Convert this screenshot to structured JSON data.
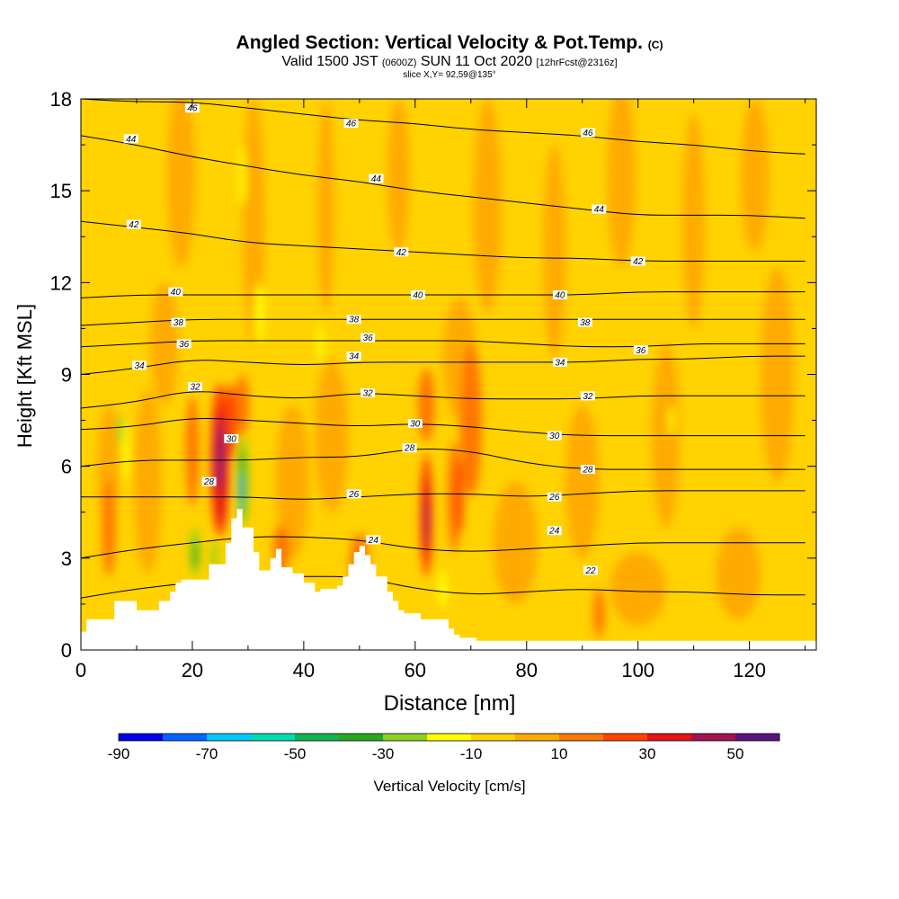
{
  "title": {
    "main": "Angled Section: Vertical Velocity & Pot.Temp.",
    "main_unit": "(C)",
    "valid_prefix": "Valid 1500 JST",
    "valid_utc": "(0600Z)",
    "valid_date": "SUN 11 Oct 2020",
    "valid_fcst": "[12hrFcst@2316z]",
    "slice": "slice X,Y= 92,59@135°"
  },
  "chart_data": {
    "type": "heatmap",
    "title": "Angled Section: Vertical Velocity & Pot.Temp. (C)",
    "xlabel": "Distance [nm]",
    "ylabel": "Height [Kft MSL]",
    "xlim": [
      0,
      132
    ],
    "ylim": [
      0,
      18
    ],
    "x_ticks": [
      "0",
      "20",
      "40",
      "60",
      "80",
      "100",
      "120"
    ],
    "y_ticks": [
      "0",
      "3",
      "6",
      "9",
      "12",
      "15",
      "18"
    ],
    "colorbar": {
      "label": "Vertical Velocity [cm/s]",
      "tick_labels": [
        "-90",
        "-70",
        "-50",
        "-30",
        "-10",
        "10",
        "30",
        "50"
      ],
      "colors": [
        "#0000e8",
        "#0064ff",
        "#00c8ff",
        "#00dcb4",
        "#10b450",
        "#28a81e",
        "#8cd21e",
        "#ffff00",
        "#ffd200",
        "#ffaa00",
        "#ff7800",
        "#ff4600",
        "#e61414",
        "#a01450",
        "#5a147d"
      ]
    },
    "theta_contours": [
      {
        "label": "22",
        "x": [
          0,
          10,
          20,
          30,
          40,
          50,
          60,
          70,
          80,
          90,
          100,
          110,
          120,
          130
        ],
        "y": [
          1.7,
          2.0,
          2.2,
          2.4,
          2.4,
          2.4,
          2.0,
          1.8,
          1.9,
          2.0,
          1.9,
          1.9,
          1.8,
          1.8
        ]
      },
      {
        "label": "24",
        "x": [
          0,
          10,
          20,
          30,
          40,
          50,
          60,
          70,
          80,
          90,
          100,
          110,
          120,
          130
        ],
        "y": [
          3.0,
          3.3,
          3.5,
          3.7,
          3.7,
          3.6,
          3.3,
          3.2,
          3.3,
          3.4,
          3.5,
          3.5,
          3.5,
          3.5
        ]
      },
      {
        "label": "26",
        "x": [
          0,
          10,
          20,
          30,
          40,
          50,
          60,
          70,
          80,
          90,
          100,
          110,
          120,
          130
        ],
        "y": [
          5.0,
          5.0,
          5.0,
          5.0,
          4.9,
          5.0,
          5.1,
          5.1,
          5.0,
          5.1,
          5.2,
          5.2,
          5.2,
          5.2
        ]
      },
      {
        "label": "28",
        "x": [
          0,
          10,
          20,
          30,
          40,
          50,
          60,
          70,
          80,
          90,
          100,
          110,
          120,
          130
        ],
        "y": [
          6.0,
          6.2,
          6.2,
          6.2,
          6.3,
          6.3,
          6.6,
          6.5,
          6.1,
          5.9,
          5.9,
          5.9,
          5.9,
          5.9
        ]
      },
      {
        "label": "30",
        "x": [
          0,
          10,
          20,
          30,
          40,
          50,
          60,
          70,
          80,
          90,
          100,
          110,
          120,
          130
        ],
        "y": [
          7.2,
          7.3,
          7.6,
          7.5,
          7.4,
          7.3,
          7.4,
          7.3,
          7.1,
          7.0,
          7.0,
          7.0,
          7.0,
          7.0
        ]
      },
      {
        "label": "32",
        "x": [
          0,
          10,
          20,
          30,
          40,
          50,
          60,
          70,
          80,
          90,
          100,
          110,
          120,
          130
        ],
        "y": [
          7.9,
          8.1,
          8.5,
          8.3,
          8.2,
          8.4,
          8.3,
          8.2,
          8.2,
          8.2,
          8.3,
          8.3,
          8.3,
          8.3
        ]
      },
      {
        "label": "34",
        "x": [
          0,
          10,
          20,
          30,
          40,
          50,
          60,
          70,
          80,
          90,
          100,
          110,
          120,
          130
        ],
        "y": [
          9.0,
          9.2,
          9.5,
          9.4,
          9.3,
          9.4,
          9.4,
          9.4,
          9.4,
          9.4,
          9.5,
          9.5,
          9.6,
          9.6
        ]
      },
      {
        "label": "36",
        "x": [
          0,
          10,
          20,
          30,
          40,
          50,
          60,
          70,
          80,
          90,
          100,
          110,
          120,
          130
        ],
        "y": [
          9.9,
          10.0,
          10.1,
          10.1,
          10.1,
          10.1,
          10.1,
          10.1,
          10.0,
          9.9,
          9.9,
          10.0,
          10.0,
          10.0
        ]
      },
      {
        "label": "38",
        "x": [
          0,
          10,
          20,
          30,
          40,
          50,
          60,
          70,
          80,
          90,
          100,
          110,
          120,
          130
        ],
        "y": [
          10.6,
          10.7,
          10.8,
          10.8,
          10.8,
          10.8,
          10.8,
          10.8,
          10.8,
          10.8,
          10.8,
          10.8,
          10.8,
          10.8
        ]
      },
      {
        "label": "40",
        "x": [
          0,
          10,
          20,
          30,
          40,
          50,
          60,
          70,
          80,
          90,
          100,
          110,
          120,
          130
        ],
        "y": [
          11.5,
          11.6,
          11.6,
          11.6,
          11.6,
          11.6,
          11.6,
          11.6,
          11.6,
          11.6,
          11.7,
          11.7,
          11.7,
          11.7
        ]
      },
      {
        "label": "42",
        "x": [
          0,
          10,
          20,
          30,
          40,
          50,
          60,
          70,
          80,
          90,
          100,
          110,
          120,
          130
        ],
        "y": [
          14.0,
          13.8,
          13.6,
          13.3,
          13.2,
          13.1,
          13.0,
          12.9,
          12.8,
          12.8,
          12.7,
          12.7,
          12.7,
          12.7
        ]
      },
      {
        "label": "44",
        "x": [
          0,
          10,
          20,
          30,
          40,
          50,
          60,
          70,
          80,
          90,
          100,
          110,
          120,
          130
        ],
        "y": [
          16.8,
          16.5,
          16.1,
          15.8,
          15.5,
          15.3,
          15.0,
          14.8,
          14.6,
          14.4,
          14.2,
          14.2,
          14.2,
          14.1
        ]
      },
      {
        "label": "46",
        "x": [
          0,
          10,
          20,
          30,
          40,
          50,
          60,
          70,
          80,
          90,
          100,
          110,
          120,
          130
        ],
        "y": [
          18.0,
          17.9,
          17.9,
          17.7,
          17.5,
          17.3,
          17.2,
          17.0,
          16.9,
          16.8,
          16.6,
          16.5,
          16.3,
          16.2
        ]
      }
    ],
    "contour_labels": [
      {
        "text": "46",
        "x": 20,
        "y": 17.7
      },
      {
        "text": "46",
        "x": 48.5,
        "y": 17.2
      },
      {
        "text": "46",
        "x": 91,
        "y": 16.9
      },
      {
        "text": "44",
        "x": 9,
        "y": 16.7
      },
      {
        "text": "44",
        "x": 53,
        "y": 15.4
      },
      {
        "text": "44",
        "x": 93,
        "y": 14.4
      },
      {
        "text": "42",
        "x": 9.5,
        "y": 13.9
      },
      {
        "text": "42",
        "x": 57.5,
        "y": 13.0
      },
      {
        "text": "42",
        "x": 100,
        "y": 12.7
      },
      {
        "text": "40",
        "x": 17,
        "y": 11.7
      },
      {
        "text": "40",
        "x": 60.5,
        "y": 11.6
      },
      {
        "text": "40",
        "x": 86,
        "y": 11.6
      },
      {
        "text": "38",
        "x": 17.5,
        "y": 10.7
      },
      {
        "text": "38",
        "x": 49,
        "y": 10.8
      },
      {
        "text": "38",
        "x": 90.5,
        "y": 10.7
      },
      {
        "text": "36",
        "x": 18.5,
        "y": 10.0
      },
      {
        "text": "36",
        "x": 51.5,
        "y": 10.2
      },
      {
        "text": "36",
        "x": 100.5,
        "y": 9.8
      },
      {
        "text": "34",
        "x": 10.5,
        "y": 9.3
      },
      {
        "text": "34",
        "x": 49,
        "y": 9.6
      },
      {
        "text": "34",
        "x": 86,
        "y": 9.4
      },
      {
        "text": "32",
        "x": 20.5,
        "y": 8.6
      },
      {
        "text": "32",
        "x": 51.5,
        "y": 8.4
      },
      {
        "text": "32",
        "x": 91,
        "y": 8.3
      },
      {
        "text": "30",
        "x": 27,
        "y": 6.9
      },
      {
        "text": "30",
        "x": 60,
        "y": 7.4
      },
      {
        "text": "30",
        "x": 85,
        "y": 7.0
      },
      {
        "text": "28",
        "x": 23,
        "y": 5.5
      },
      {
        "text": "28",
        "x": 59,
        "y": 6.6
      },
      {
        "text": "28",
        "x": 91,
        "y": 5.9
      },
      {
        "text": "26",
        "x": 49,
        "y": 5.1
      },
      {
        "text": "26",
        "x": 85,
        "y": 5.0
      },
      {
        "text": "24",
        "x": 52.5,
        "y": 3.6
      },
      {
        "text": "24",
        "x": 85,
        "y": 3.9
      },
      {
        "text": "22",
        "x": 91.5,
        "y": 2.6
      }
    ],
    "terrain": {
      "x": [
        0,
        1,
        1,
        6,
        6,
        10,
        10,
        14,
        14,
        16,
        16,
        17,
        17,
        18,
        18,
        23,
        23,
        26,
        26,
        27,
        27,
        28,
        28,
        29,
        29,
        31,
        31,
        32,
        32,
        34,
        34,
        35,
        35,
        36,
        36,
        38,
        38,
        40,
        40,
        42,
        42,
        43,
        43,
        46,
        46,
        47,
        47,
        48,
        48,
        49,
        49,
        50,
        50,
        51,
        51,
        52,
        52,
        53,
        53,
        55,
        55,
        56,
        56,
        57,
        57,
        58,
        58,
        61,
        61,
        66,
        66,
        67,
        67,
        68,
        68,
        71,
        71,
        73,
        73,
        132
      ],
      "y": [
        0.6,
        0.6,
        1.0,
        1.0,
        1.6,
        1.6,
        1.3,
        1.3,
        1.6,
        1.6,
        1.9,
        1.9,
        2.2,
        2.2,
        2.3,
        2.3,
        2.8,
        2.8,
        3.5,
        3.5,
        4.3,
        4.3,
        4.6,
        4.6,
        4.0,
        4.0,
        3.2,
        3.2,
        2.6,
        2.6,
        3.0,
        3.0,
        3.3,
        3.3,
        2.7,
        2.7,
        2.5,
        2.5,
        2.2,
        2.2,
        1.9,
        1.9,
        2.0,
        2.0,
        2.1,
        2.1,
        2.4,
        2.4,
        2.8,
        2.8,
        3.2,
        3.2,
        3.4,
        3.4,
        3.1,
        3.1,
        2.8,
        2.8,
        2.4,
        2.4,
        1.9,
        1.9,
        1.6,
        1.6,
        1.3,
        1.3,
        1.2,
        1.2,
        1.0,
        1.0,
        0.7,
        0.7,
        0.5,
        0.5,
        0.4,
        0.4,
        0.3,
        0.3,
        0.3,
        0.3
      ]
    }
  }
}
